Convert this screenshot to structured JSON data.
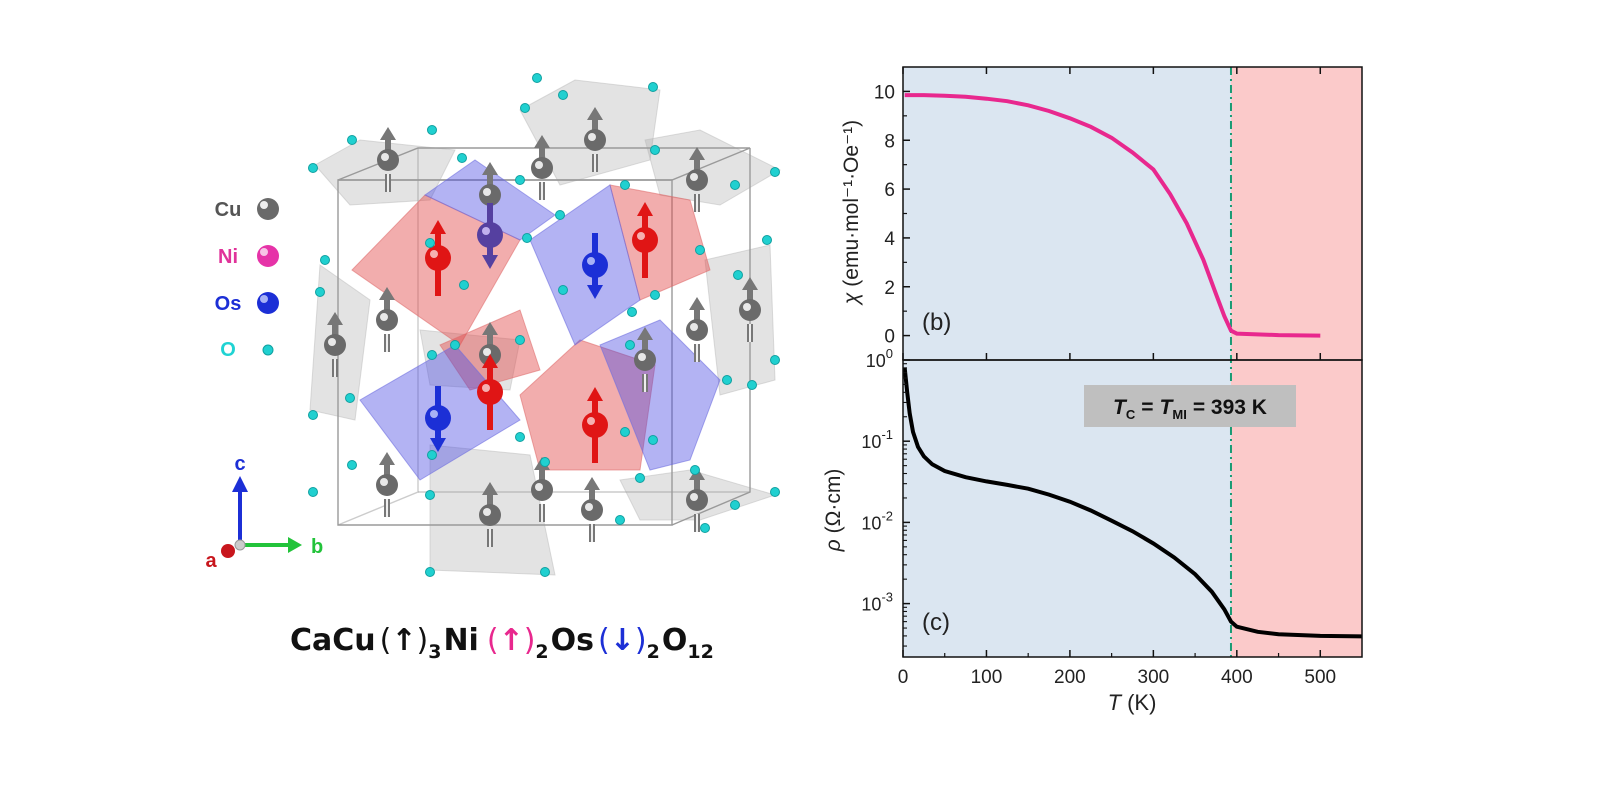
{
  "legend": {
    "items": [
      {
        "label": "Cu",
        "color": "#555555",
        "ball": "#6b6b6b"
      },
      {
        "label": "Ni",
        "color": "#e0339a",
        "ball": "#e633a8"
      },
      {
        "label": "Os",
        "color": "#1c2fd6",
        "ball": "#1c2fd6"
      },
      {
        "label": "O",
        "color": "#1fd3d3",
        "ball": "#20d0d0"
      }
    ]
  },
  "axes_indicator": {
    "c": "c",
    "a": "a",
    "b": "b"
  },
  "formula": {
    "p1": "CaCu",
    "open1": "(",
    "arrow1": "↑",
    "close1": ")",
    "sub1": "3",
    "p2": "Ni",
    "open2": "(",
    "arrow2": "↑",
    "close2": ")",
    "sub2": "2",
    "p3": "Os",
    "open3": "(",
    "arrow3": "↓",
    "close3": ")",
    "sub3": "2",
    "p4": "O",
    "sub4": "12"
  },
  "colors": {
    "blue_region": "#dbe6f1",
    "red_region": "#fbcaca",
    "chi_line": "#e8288e",
    "rho_line": "#000000",
    "tc_line": "#199b74"
  },
  "chart_data": [
    {
      "type": "line",
      "panel": "(b)",
      "ylabel_symbol": "χ",
      "ylabel_units": "(emu·mol⁻¹·Oe⁻¹)",
      "xlim": [
        0,
        550
      ],
      "ylim": [
        -1,
        11
      ],
      "yticks": [
        "0",
        "2",
        "4",
        "6",
        "8",
        "10"
      ],
      "series": [
        {
          "values": [
            [
              2,
              9.85
            ],
            [
              25,
              9.85
            ],
            [
              50,
              9.82
            ],
            [
              75,
              9.78
            ],
            [
              100,
              9.7
            ],
            [
              125,
              9.6
            ],
            [
              150,
              9.43
            ],
            [
              175,
              9.2
            ],
            [
              200,
              8.9
            ],
            [
              225,
              8.55
            ],
            [
              250,
              8.1
            ],
            [
              275,
              7.5
            ],
            [
              300,
              6.8
            ],
            [
              320,
              5.8
            ],
            [
              340,
              4.6
            ],
            [
              360,
              3.1
            ],
            [
              375,
              1.7
            ],
            [
              385,
              0.8
            ],
            [
              393,
              0.2
            ],
            [
              400,
              0.08
            ],
            [
              450,
              0.02
            ],
            [
              500,
              0.0
            ]
          ]
        }
      ]
    },
    {
      "type": "line",
      "panel": "(c)",
      "ylabel_symbol": "ρ",
      "ylabel_units": "(Ω·cm)",
      "xlabel_symbol": "T",
      "xlabel_units": "(K)",
      "xlim": [
        0,
        550
      ],
      "ylim": [
        0.00022,
        1
      ],
      "yscale": "log",
      "xticks": [
        "0",
        "100",
        "200",
        "300",
        "400",
        "500"
      ],
      "yticks": [
        {
          "base": "10",
          "exp": "0",
          "value": 1
        },
        {
          "base": "10",
          "exp": "-1",
          "value": 0.1
        },
        {
          "base": "10",
          "exp": "-2",
          "value": 0.01
        },
        {
          "base": "10",
          "exp": "-3",
          "value": 0.001
        }
      ],
      "series": [
        {
          "values": [
            [
              2,
              0.8
            ],
            [
              5,
              0.4
            ],
            [
              8,
              0.22
            ],
            [
              12,
              0.13
            ],
            [
              18,
              0.085
            ],
            [
              25,
              0.065
            ],
            [
              35,
              0.052
            ],
            [
              50,
              0.043
            ],
            [
              75,
              0.036
            ],
            [
              100,
              0.032
            ],
            [
              125,
              0.029
            ],
            [
              150,
              0.026
            ],
            [
              175,
              0.022
            ],
            [
              200,
              0.018
            ],
            [
              225,
              0.014
            ],
            [
              250,
              0.0105
            ],
            [
              275,
              0.0078
            ],
            [
              300,
              0.0055
            ],
            [
              325,
              0.0037
            ],
            [
              350,
              0.0023
            ],
            [
              370,
              0.0014
            ],
            [
              385,
              0.00085
            ],
            [
              393,
              0.0006
            ],
            [
              400,
              0.00052
            ],
            [
              425,
              0.00045
            ],
            [
              450,
              0.00042
            ],
            [
              500,
              0.0004
            ],
            [
              550,
              0.000395
            ]
          ]
        }
      ],
      "annotation": {
        "T_sym": "T",
        "sub_C": "C",
        "eq1": "=",
        "sub_MI": "MI",
        "value": "= 393 K"
      }
    }
  ],
  "tc_value": 393
}
